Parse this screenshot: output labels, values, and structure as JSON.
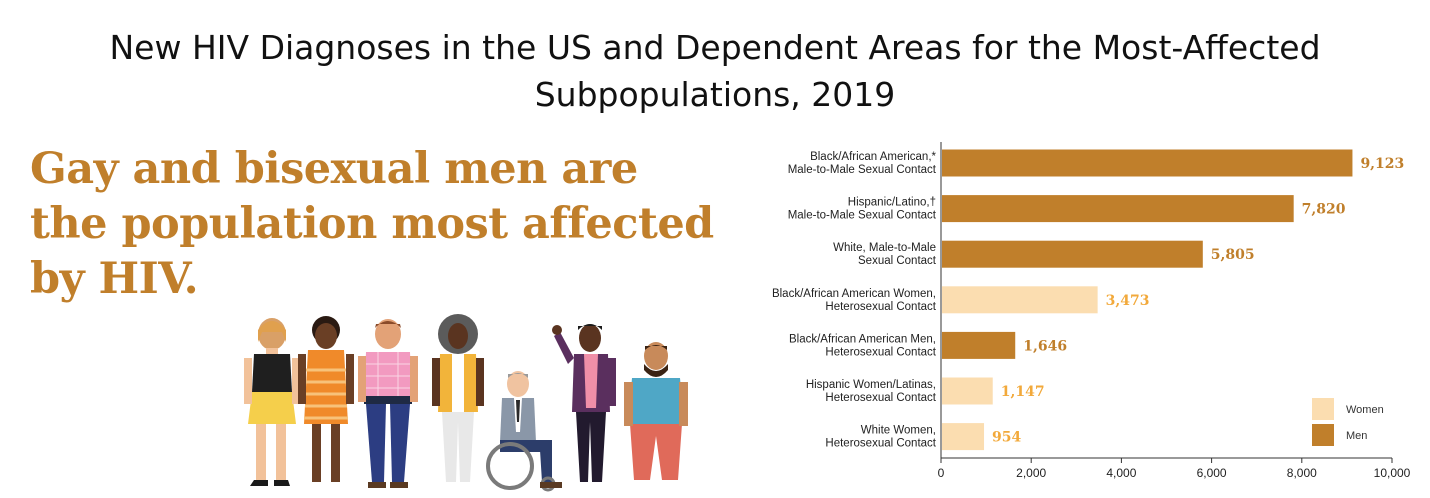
{
  "title_lines": [
    "New HIV Diagnoses in the US and Dependent Areas for the Most-Affected",
    "Subpopulations, 2019"
  ],
  "headline_lines": [
    "Gay and bisexual men are",
    "the population most affected",
    "by HIV."
  ],
  "colors": {
    "men": "#c07f2b",
    "women": "#fbddb0",
    "headline": "#c07f2b",
    "women_label": "#f2a93b"
  },
  "chart_data": {
    "type": "bar",
    "orientation": "horizontal",
    "categories": [
      [
        "Black/African American,*",
        "Male-to-Male Sexual Contact"
      ],
      [
        "Hispanic/Latino,†",
        "Male-to-Male Sexual Contact"
      ],
      [
        "White, Male-to-Male",
        "Sexual Contact"
      ],
      [
        "Black/African American Women,",
        "Heterosexual Contact"
      ],
      [
        "Black/African American Men,",
        "Heterosexual Contact"
      ],
      [
        "Hispanic Women/Latinas,",
        "Heterosexual Contact"
      ],
      [
        "White Women,",
        "Heterosexual Contact"
      ]
    ],
    "values": [
      9123,
      7820,
      5805,
      3473,
      1646,
      1147,
      954
    ],
    "value_labels": [
      "9,123",
      "7,820",
      "5,805",
      "3,473",
      "1,646",
      "1,147",
      "954"
    ],
    "groups": [
      "Men",
      "Men",
      "Men",
      "Women",
      "Men",
      "Women",
      "Women"
    ],
    "xlim": [
      0,
      10000
    ],
    "xticks": [
      0,
      2000,
      4000,
      6000,
      8000,
      10000
    ],
    "xtick_labels": [
      "0",
      "2,000",
      "4,000",
      "6,000",
      "8,000",
      "10,000"
    ],
    "legend": [
      {
        "name": "Women",
        "group": "Women"
      },
      {
        "name": "Men",
        "group": "Men"
      }
    ],
    "legend_position": "bottom-right",
    "grid": false
  }
}
